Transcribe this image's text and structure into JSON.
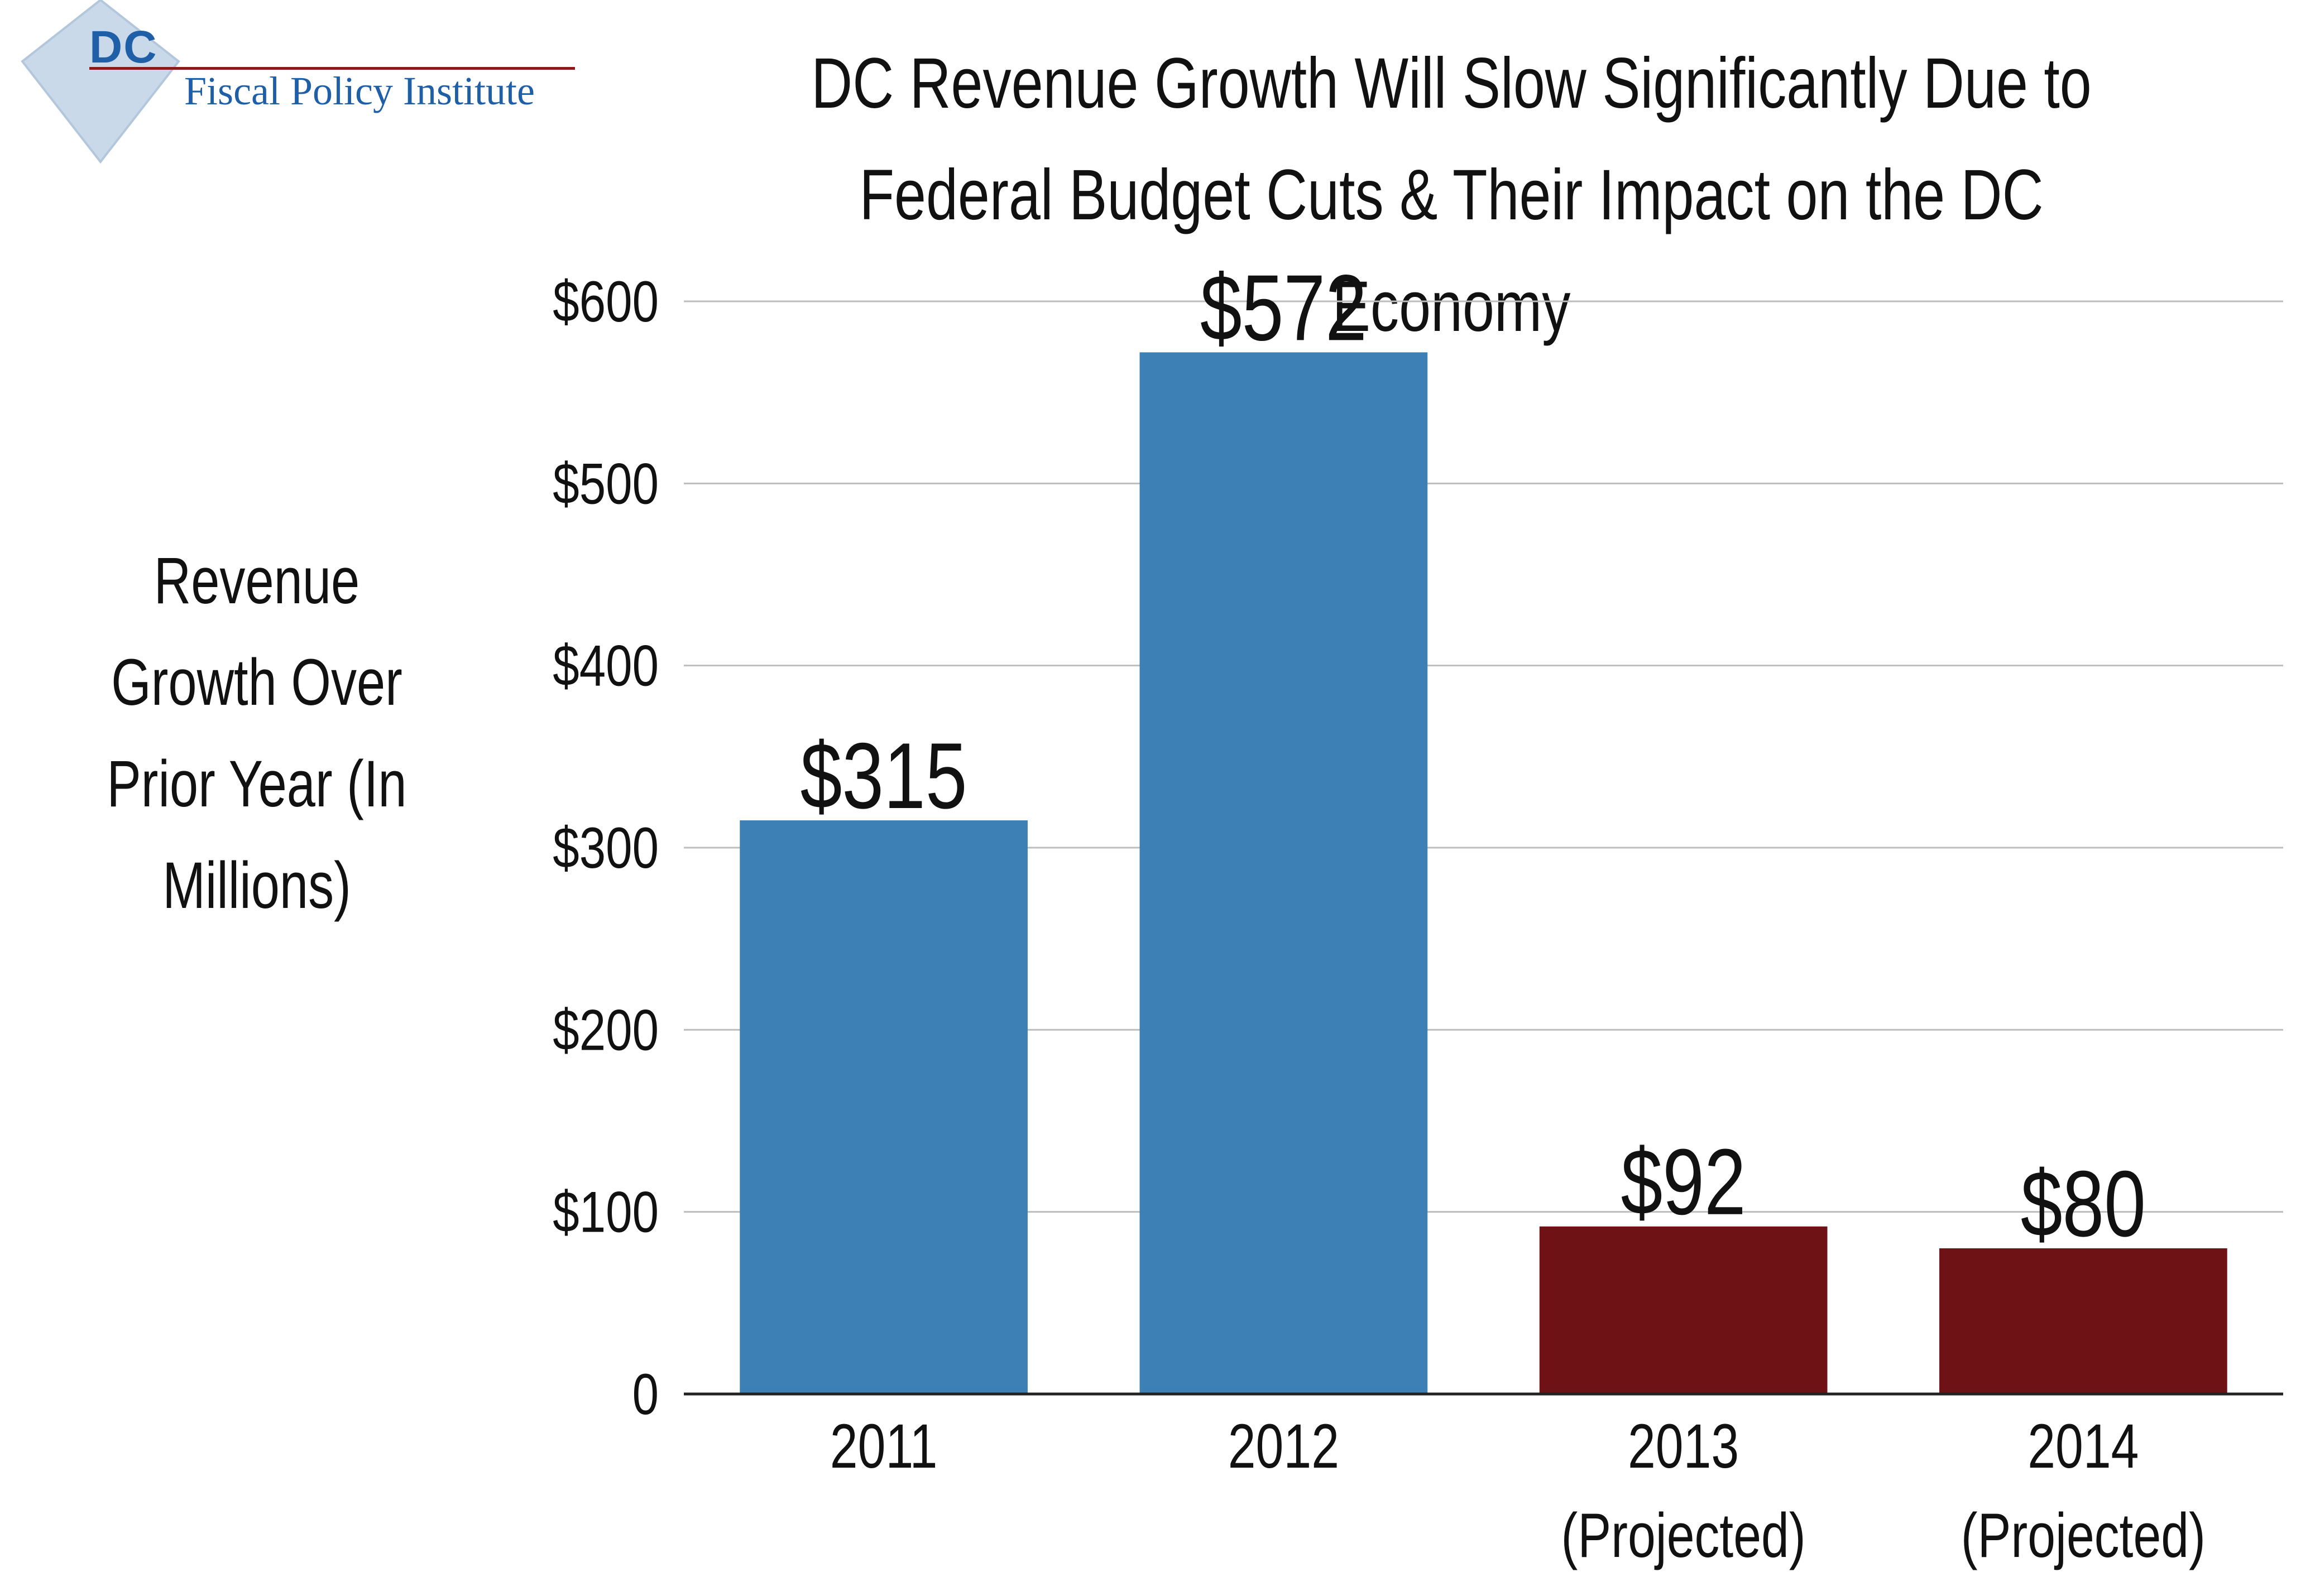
{
  "logo": {
    "abbr": "DC",
    "name": "Fiscal Policy Institute"
  },
  "colors": {
    "actual": "#3d80b6",
    "projected": "#6e1215",
    "gridline": "#bdbdbd",
    "axis": "#222222",
    "map_shape": "#c9d9ea"
  },
  "chart_data": {
    "type": "bar",
    "title": "DC Revenue Growth Will Slow Significantly Due to Federal Budget Cuts & Their Impact on the DC Economy",
    "ylabel": "Revenue Growth Over Prior Year (In Millions)",
    "xlabel": "",
    "categories": [
      [
        "2011"
      ],
      [
        "2012"
      ],
      [
        "2013",
        "(Projected)"
      ],
      [
        "2014",
        "(Projected)"
      ]
    ],
    "values": [
      315,
      572,
      92,
      80
    ],
    "value_labels": [
      "$315",
      "$572",
      "$92",
      "$80"
    ],
    "bar_kinds": [
      "actual",
      "actual",
      "projected",
      "projected"
    ],
    "ylim": [
      0,
      600
    ],
    "yticks": [
      0,
      100,
      200,
      300,
      400,
      500,
      600
    ],
    "ytick_labels": [
      "0",
      "$100",
      "$200",
      "$300",
      "$400",
      "$500",
      "$600"
    ],
    "grid": true,
    "legend": "none"
  }
}
